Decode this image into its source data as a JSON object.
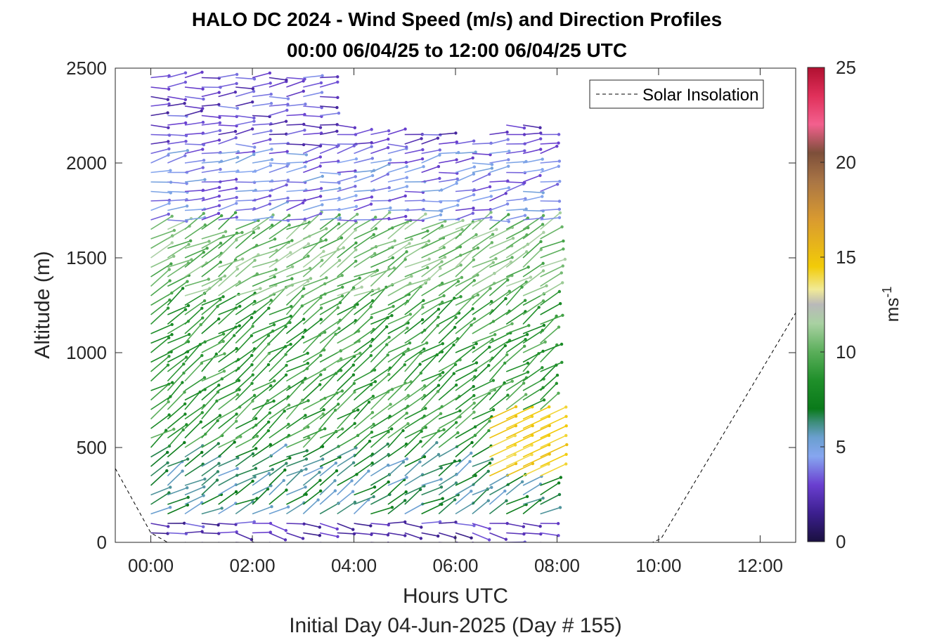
{
  "chart_data": {
    "type": "quiver",
    "title_line1": "HALO DC 2024 - Wind Speed (m/s) and Direction Profiles",
    "title_line2": "00:00 06/04/25 to 12:00 06/04/25  UTC",
    "xlabel": "Hours UTC",
    "xlabel2": "Initial Day 04-Jun-2025 (Day # 155)",
    "ylabel": "Altitude (m)",
    "xlim_hours": [
      -0.7,
      12.7
    ],
    "ylim": [
      0,
      2500
    ],
    "xticks": [
      {
        "value": 0,
        "label": "00:00"
      },
      {
        "value": 2,
        "label": "02:00"
      },
      {
        "value": 4,
        "label": "04:00"
      },
      {
        "value": 6,
        "label": "06:00"
      },
      {
        "value": 8,
        "label": "08:00"
      },
      {
        "value": 10,
        "label": "10:00"
      },
      {
        "value": 12,
        "label": "12:00"
      }
    ],
    "yticks": [
      0,
      500,
      1000,
      1500,
      2000,
      2500
    ],
    "colorbar": {
      "label": "ms",
      "label_exponent": "-1",
      "range": [
        0,
        25
      ],
      "ticks": [
        0,
        5,
        10,
        15,
        20,
        25
      ],
      "colormap_stops": [
        {
          "v": 0,
          "c": "#1a1040"
        },
        {
          "v": 1.5,
          "c": "#3c1f8f"
        },
        {
          "v": 3,
          "c": "#6a3fd0"
        },
        {
          "v": 4.5,
          "c": "#86a6f0"
        },
        {
          "v": 5.5,
          "c": "#6a9fcf"
        },
        {
          "v": 6.3,
          "c": "#3d8d7a"
        },
        {
          "v": 7,
          "c": "#0a7a1a"
        },
        {
          "v": 8.5,
          "c": "#1f8f2a"
        },
        {
          "v": 10,
          "c": "#5aae5a"
        },
        {
          "v": 11.5,
          "c": "#a9d1a2"
        },
        {
          "v": 12.5,
          "c": "#b9b9b9"
        },
        {
          "v": 13.3,
          "c": "#f1ea96"
        },
        {
          "v": 14.5,
          "c": "#f2cb08"
        },
        {
          "v": 17,
          "c": "#d99a30"
        },
        {
          "v": 19,
          "c": "#a97545"
        },
        {
          "v": 20.5,
          "c": "#7d4f3a"
        },
        {
          "v": 22,
          "c": "#f3608e"
        },
        {
          "v": 23.5,
          "c": "#e0305a"
        },
        {
          "v": 25,
          "c": "#b01030"
        }
      ]
    },
    "legend": {
      "entries": [
        "Solar Insolation"
      ],
      "location": "top-right"
    },
    "solar_insolation_curve": {
      "x_hours": [
        -0.7,
        0.0,
        0.33,
        9.88,
        10.05,
        12.7
      ],
      "y": [
        390,
        50,
        0,
        0,
        20,
        1210
      ]
    },
    "wind_profiles": {
      "times_hours": [
        0.0,
        0.33,
        0.67,
        1.0,
        1.33,
        1.67,
        2.0,
        2.33,
        2.67,
        3.0,
        3.33,
        3.67,
        4.0,
        4.33,
        4.67,
        5.0,
        5.33,
        5.67,
        6.0,
        6.33,
        6.67,
        7.0,
        7.33,
        7.67
      ],
      "altitude_step_m": 50,
      "max_altitude_m": 2500,
      "top_of_data_m": [
        2490,
        2490,
        2490,
        2490,
        2490,
        2490,
        2490,
        2490,
        2490,
        2490,
        2490,
        2200,
        2190,
        2180,
        2170,
        2150,
        2150,
        2150,
        2130,
        2120,
        2190,
        2200,
        2200,
        2170
      ],
      "direction_note": "arrows point toward the direction the wind blows",
      "speed_layers_ms": [
        {
          "from_m": 0,
          "to_m": 150,
          "speed": 2.5,
          "toward_deg": 100
        },
        {
          "from_m": 150,
          "to_m": 500,
          "speed": 6.5,
          "toward_deg": 60
        },
        {
          "from_m": 500,
          "to_m": 1300,
          "speed": 9.0,
          "toward_deg": 55
        },
        {
          "from_m": 1300,
          "to_m": 1700,
          "speed": 10.5,
          "toward_deg": 60
        },
        {
          "from_m": 1700,
          "to_m": 2100,
          "speed": 4.0,
          "toward_deg": 80
        },
        {
          "from_m": 2100,
          "to_m": 2500,
          "speed": 3.0,
          "toward_deg": 85
        }
      ],
      "jet_region": {
        "from_hours": 6.5,
        "to_hours": 7.7,
        "from_m": 350,
        "to_m": 650,
        "speed": 14.5
      }
    }
  }
}
